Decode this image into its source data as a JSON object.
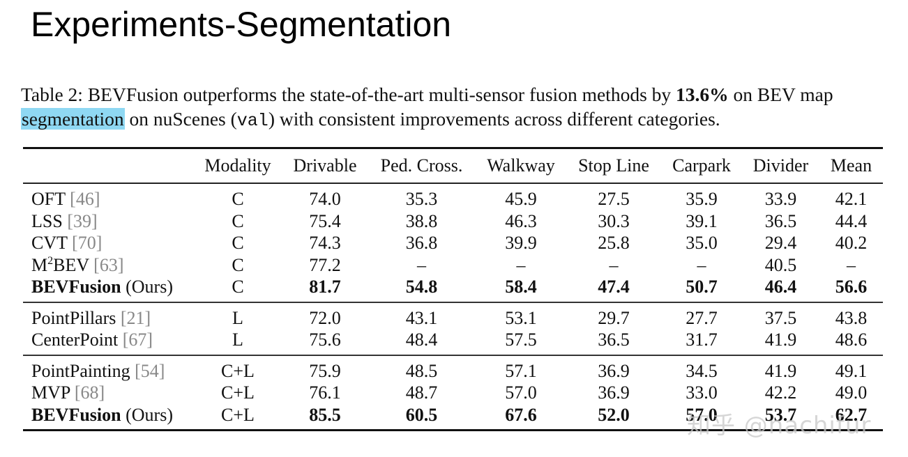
{
  "slide": {
    "title": "Experiments-Segmentation"
  },
  "caption": {
    "prefix": "Table 2: BEVFusion outperforms the state-of-the-art multi-sensor fusion methods by ",
    "highlight_number": "13.6%",
    "middle1": " on BEV map ",
    "highlighted_word": "segmentation",
    "middle2": " on nuScenes (",
    "mono": "val",
    "suffix": ") with consistent improvements across different categories.",
    "highlight_color": "#8fd8f3"
  },
  "table": {
    "columns": [
      "",
      "Modality",
      "Drivable",
      "Ped. Cross.",
      "Walkway",
      "Stop Line",
      "Carpark",
      "Divider",
      "Mean"
    ],
    "groups": [
      {
        "rows": [
          {
            "name": "OFT",
            "cite": "[46]",
            "modality": "C",
            "values": [
              "74.0",
              "35.3",
              "45.9",
              "27.5",
              "35.9",
              "33.9",
              "42.1"
            ],
            "bold": false
          },
          {
            "name": "LSS",
            "cite": "[39]",
            "modality": "C",
            "values": [
              "75.4",
              "38.8",
              "46.3",
              "30.3",
              "39.1",
              "36.5",
              "44.4"
            ],
            "bold": false
          },
          {
            "name": "CVT",
            "cite": "[70]",
            "modality": "C",
            "values": [
              "74.3",
              "36.8",
              "39.9",
              "25.8",
              "35.0",
              "29.4",
              "40.2"
            ],
            "bold": false
          },
          {
            "name_base": "M",
            "name_sup": "2",
            "name_rest": "BEV",
            "cite": "[63]",
            "modality": "C",
            "values": [
              "77.2",
              "–",
              "–",
              "–",
              "–",
              "40.5",
              "–"
            ],
            "bold": false
          },
          {
            "name": "BEVFusion",
            "suffix": "(Ours)",
            "modality": "C",
            "values": [
              "81.7",
              "54.8",
              "58.4",
              "47.4",
              "50.7",
              "46.4",
              "56.6"
            ],
            "bold": true
          }
        ]
      },
      {
        "rows": [
          {
            "name": "PointPillars",
            "cite": "[21]",
            "modality": "L",
            "values": [
              "72.0",
              "43.1",
              "53.1",
              "29.7",
              "27.7",
              "37.5",
              "43.8"
            ],
            "bold": false
          },
          {
            "name": "CenterPoint",
            "cite": "[67]",
            "modality": "L",
            "values": [
              "75.6",
              "48.4",
              "57.5",
              "36.5",
              "31.7",
              "41.9",
              "48.6"
            ],
            "bold": false
          }
        ]
      },
      {
        "rows": [
          {
            "name": "PointPainting",
            "cite": "[54]",
            "modality": "C+L",
            "values": [
              "75.9",
              "48.5",
              "57.1",
              "36.9",
              "34.5",
              "41.9",
              "49.1"
            ],
            "bold": false
          },
          {
            "name": "MVP",
            "cite": "[68]",
            "modality": "C+L",
            "values": [
              "76.1",
              "48.7",
              "57.0",
              "36.9",
              "33.0",
              "42.2",
              "49.0"
            ],
            "bold": false
          },
          {
            "name": "BEVFusion",
            "suffix": "(Ours)",
            "modality": "C+L",
            "values": [
              "85.5",
              "60.5",
              "67.6",
              "52.0",
              "57.0",
              "53.7",
              "62.7"
            ],
            "bold": true
          }
        ]
      }
    ]
  },
  "watermark": "知乎 @nachifur"
}
